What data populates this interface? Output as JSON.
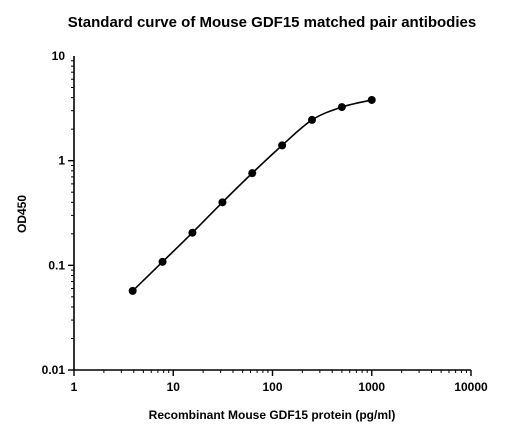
{
  "chart_data": {
    "type": "scatter",
    "title": "Standard curve of Mouse GDF15 matched pair antibodies",
    "xlabel": "Recombinant Mouse GDF15 protein (pg/ml)",
    "ylabel": "OD450",
    "x_scale": "log",
    "y_scale": "log",
    "xlim": [
      1,
      10000
    ],
    "ylim": [
      0.01,
      10
    ],
    "x_ticks": [
      {
        "value": 1,
        "label": "1"
      },
      {
        "value": 10,
        "label": "10"
      },
      {
        "value": 100,
        "label": "100"
      },
      {
        "value": 1000,
        "label": "1000"
      },
      {
        "value": 10000,
        "label": "10000"
      }
    ],
    "y_ticks": [
      {
        "value": 0.01,
        "label": "0.01"
      },
      {
        "value": 0.1,
        "label": "0.1"
      },
      {
        "value": 1,
        "label": "1"
      },
      {
        "value": 10,
        "label": "10"
      }
    ],
    "grid": false,
    "legend": "none",
    "series": [
      {
        "x": [
          3.9,
          7.8,
          15.6,
          31.3,
          62.5,
          125,
          250,
          500,
          1000
        ],
        "y": [
          0.057,
          0.108,
          0.205,
          0.4,
          0.76,
          1.4,
          2.45,
          3.25,
          3.8
        ],
        "marker": "circle",
        "color": "#000000",
        "fit_curve": true
      }
    ]
  }
}
